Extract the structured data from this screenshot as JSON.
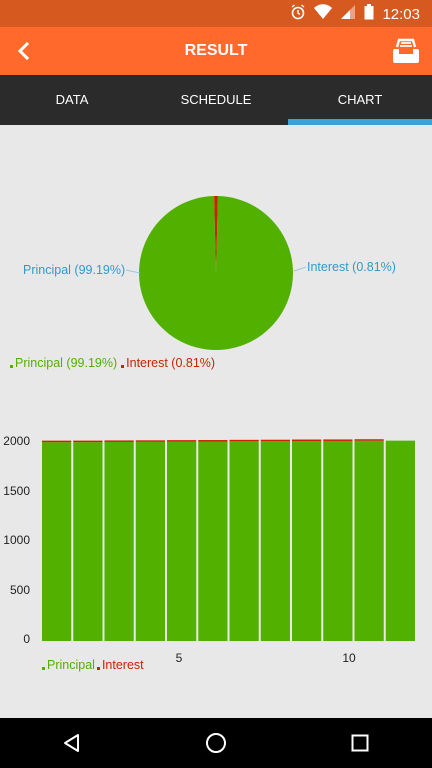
{
  "status_bar": {
    "time": "12:03"
  },
  "app_bar": {
    "title": "RESULT"
  },
  "tabs": [
    {
      "label": "DATA",
      "active": false
    },
    {
      "label": "SCHEDULE",
      "active": false
    },
    {
      "label": "CHART",
      "active": true
    }
  ],
  "colors": {
    "principal": "#52b000",
    "interest": "#cc2200",
    "accent": "#ff6a2c",
    "tab_indicator": "#3aa0d8"
  },
  "pie": {
    "label_principal": "Principal (99.19%)",
    "label_interest": "Interest (0.81%)",
    "legend_principal": "Principal (99.19%)",
    "legend_interest": "Interest (0.81%)"
  },
  "bar": {
    "legend_principal": "Principal",
    "legend_interest": "Interest",
    "y_ticks": [
      "0",
      "500",
      "1000",
      "1500",
      "2000"
    ],
    "x_ticks": [
      "5",
      "10"
    ]
  },
  "chart_data": [
    {
      "type": "pie",
      "categories": [
        "Principal",
        "Interest"
      ],
      "values": [
        99.19,
        0.81
      ],
      "legend": "bottom-left"
    },
    {
      "type": "bar",
      "stacked": true,
      "x": [
        1,
        2,
        3,
        4,
        5,
        6,
        7,
        8,
        9,
        10,
        11,
        12
      ],
      "series": [
        {
          "name": "Principal",
          "values": [
            2018,
            2019,
            2021,
            2022,
            2024,
            2025,
            2027,
            2028,
            2030,
            2031,
            2033,
            2034
          ]
        },
        {
          "name": "Interest",
          "values": [
            16,
            15,
            13,
            12,
            10,
            9,
            7,
            6,
            4,
            3,
            1,
            0
          ]
        }
      ],
      "ylim": [
        0,
        2000
      ],
      "y_ticks": [
        0,
        500,
        1000,
        1500,
        2000
      ],
      "x_ticks": [
        5,
        10
      ],
      "grid": false,
      "legend": "bottom-left"
    }
  ]
}
